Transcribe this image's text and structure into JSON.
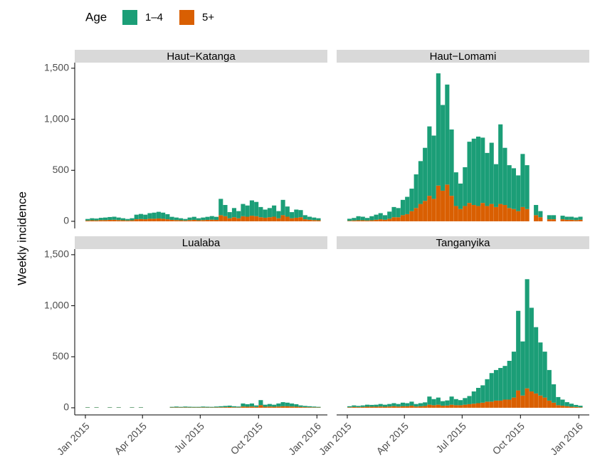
{
  "legend": {
    "title": "Age"
  },
  "y_label": "Weekly incidence",
  "chart_data": [
    {
      "type": "bar",
      "title": "Haut−Katanga",
      "categories": [
        null,
        null,
        null,
        null,
        null,
        null,
        null,
        null,
        null,
        null,
        null,
        null,
        null,
        null,
        null,
        null,
        null,
        null,
        null,
        null,
        null,
        null,
        null,
        null,
        null,
        null,
        null,
        null,
        null,
        null,
        null,
        null,
        null,
        null,
        null,
        null,
        null,
        null,
        null,
        null,
        null,
        null,
        null,
        null,
        null,
        null,
        null,
        null,
        null,
        null,
        null,
        null,
        null
      ],
      "series": [
        {
          "name": "1–4",
          "color": "#1b9e77",
          "values": [
            15,
            20,
            18,
            22,
            25,
            28,
            30,
            25,
            20,
            15,
            20,
            45,
            50,
            45,
            55,
            60,
            65,
            60,
            50,
            30,
            25,
            20,
            15,
            25,
            30,
            20,
            25,
            30,
            35,
            30,
            160,
            110,
            60,
            90,
            70,
            120,
            110,
            150,
            140,
            100,
            80,
            90,
            110,
            70,
            150,
            100,
            60,
            80,
            70,
            40,
            30,
            25,
            20
          ]
        },
        {
          "name": "5+",
          "color": "#d95f02",
          "values": [
            8,
            10,
            9,
            12,
            12,
            14,
            15,
            12,
            10,
            8,
            10,
            20,
            22,
            20,
            25,
            25,
            28,
            25,
            20,
            14,
            12,
            10,
            8,
            12,
            14,
            10,
            12,
            14,
            16,
            14,
            60,
            50,
            30,
            40,
            30,
            50,
            45,
            55,
            50,
            40,
            35,
            40,
            45,
            30,
            60,
            45,
            30,
            35,
            40,
            20,
            15,
            12,
            10
          ]
        }
      ],
      "xlim": [
        -2.4,
        54.5
      ],
      "ylim": [
        -70,
        1555
      ],
      "yticks": [
        0,
        500,
        {
          "value": 1000,
          "label": "1,000"
        },
        {
          "value": 1500,
          "label": "1,500"
        }
      ]
    },
    {
      "type": "bar",
      "title": "Haut−Lomami",
      "categories": [
        null,
        null,
        null,
        null,
        null,
        null,
        null,
        null,
        null,
        null,
        null,
        null,
        null,
        null,
        null,
        null,
        null,
        null,
        null,
        null,
        null,
        null,
        null,
        null,
        null,
        null,
        null,
        null,
        null,
        null,
        null,
        null,
        null,
        null,
        null,
        null,
        null,
        null,
        null,
        null,
        null,
        null,
        null,
        null,
        null,
        null,
        null,
        null,
        null,
        null,
        null,
        null,
        null
      ],
      "series": [
        {
          "name": "1–4",
          "color": "#1b9e77",
          "values": [
            20,
            25,
            40,
            35,
            25,
            40,
            50,
            60,
            45,
            70,
            100,
            90,
            150,
            170,
            220,
            330,
            420,
            520,
            680,
            620,
            1100,
            840,
            980,
            650,
            330,
            250,
            380,
            600,
            650,
            680,
            640,
            520,
            600,
            420,
            780,
            560,
            420,
            400,
            350,
            520,
            430,
            null,
            100,
            60,
            null,
            40,
            40,
            null,
            35,
            30,
            30,
            25,
            30
          ]
        },
        {
          "name": "5+",
          "color": "#d95f02",
          "values": [
            5,
            8,
            10,
            10,
            8,
            10,
            15,
            20,
            15,
            25,
            40,
            40,
            60,
            70,
            100,
            130,
            170,
            200,
            250,
            220,
            350,
            300,
            360,
            250,
            150,
            120,
            150,
            180,
            160,
            150,
            180,
            150,
            170,
            140,
            170,
            160,
            130,
            120,
            100,
            140,
            120,
            null,
            60,
            40,
            null,
            20,
            20,
            null,
            20,
            15,
            15,
            12,
            15
          ]
        }
      ],
      "xlim": [
        -2.4,
        54.5
      ],
      "ylim": [
        -70,
        1555
      ]
    },
    {
      "type": "bar",
      "title": "Lualaba",
      "categories": [
        null,
        null,
        null,
        null,
        null,
        null,
        null,
        null,
        null,
        null,
        null,
        null,
        null,
        null,
        null,
        null,
        null,
        null,
        null,
        null,
        null,
        null,
        null,
        null,
        null,
        null,
        null,
        null,
        null,
        null,
        null,
        null,
        null,
        null,
        null,
        null,
        null,
        null,
        null,
        null,
        null,
        null,
        null,
        null,
        null,
        null,
        null,
        null,
        null,
        null,
        null,
        null,
        null
      ],
      "series": [
        {
          "name": "1–4",
          "color": "#1b9e77",
          "values": [
            4,
            null,
            4,
            null,
            null,
            4,
            null,
            4,
            null,
            null,
            4,
            null,
            4,
            null,
            null,
            null,
            null,
            null,
            null,
            6,
            8,
            6,
            8,
            7,
            6,
            6,
            8,
            7,
            6,
            8,
            10,
            12,
            14,
            10,
            8,
            30,
            25,
            30,
            15,
            50,
            20,
            25,
            20,
            30,
            40,
            35,
            30,
            25,
            15,
            12,
            10,
            8,
            6
          ]
        },
        {
          "name": "5+",
          "color": "#d95f02",
          "values": [
            2,
            null,
            2,
            null,
            null,
            2,
            null,
            2,
            null,
            null,
            2,
            null,
            2,
            null,
            null,
            null,
            null,
            null,
            null,
            3,
            4,
            3,
            4,
            3,
            3,
            3,
            4,
            3,
            3,
            4,
            5,
            6,
            7,
            5,
            4,
            12,
            10,
            12,
            8,
            25,
            10,
            12,
            10,
            12,
            15,
            15,
            12,
            10,
            8,
            6,
            5,
            4,
            3
          ]
        }
      ],
      "xlim": [
        -2.4,
        54.5
      ],
      "ylim": [
        -70,
        1555
      ],
      "yticks": [
        0,
        500,
        {
          "value": 1000,
          "label": "1,000"
        },
        {
          "value": 1500,
          "label": "1,500"
        }
      ],
      "xticks": [
        {
          "value": 0,
          "label": "Jan 2015"
        },
        {
          "value": 12.86,
          "label": "Apr 2015"
        },
        {
          "value": 25.86,
          "label": "Jul 2015"
        },
        {
          "value": 39,
          "label": "Oct 2015"
        },
        {
          "value": 52.14,
          "label": "Jan 2016"
        }
      ]
    },
    {
      "type": "bar",
      "title": "Tanganyika",
      "categories": [
        null,
        null,
        null,
        null,
        null,
        null,
        null,
        null,
        null,
        null,
        null,
        null,
        null,
        null,
        null,
        null,
        null,
        null,
        null,
        null,
        null,
        null,
        null,
        null,
        null,
        null,
        null,
        null,
        null,
        null,
        null,
        null,
        null,
        null,
        null,
        null,
        null,
        null,
        null,
        null,
        null,
        null,
        null,
        null,
        null,
        null,
        null,
        null,
        null,
        null,
        null,
        null,
        null
      ],
      "series": [
        {
          "name": "1–4",
          "color": "#1b9e77",
          "values": [
            10,
            15,
            12,
            15,
            20,
            18,
            20,
            25,
            20,
            25,
            30,
            25,
            35,
            30,
            40,
            25,
            30,
            35,
            80,
            60,
            70,
            45,
            50,
            80,
            60,
            50,
            65,
            80,
            120,
            150,
            170,
            220,
            280,
            300,
            320,
            330,
            380,
            450,
            780,
            530,
            1070,
            820,
            650,
            520,
            450,
            300,
            180,
            80,
            60,
            40,
            30,
            20,
            15
          ]
        },
        {
          "name": "5+",
          "color": "#d95f02",
          "values": [
            5,
            8,
            6,
            8,
            10,
            10,
            10,
            12,
            10,
            12,
            15,
            12,
            15,
            15,
            20,
            12,
            15,
            18,
            30,
            25,
            30,
            20,
            22,
            30,
            25,
            25,
            30,
            35,
            40,
            45,
            50,
            60,
            60,
            70,
            70,
            80,
            80,
            100,
            170,
            120,
            190,
            160,
            140,
            120,
            100,
            70,
            50,
            25,
            20,
            15,
            10,
            8,
            5
          ]
        }
      ],
      "xlim": [
        -2.4,
        54.5
      ],
      "ylim": [
        -70,
        1555
      ],
      "xticks": [
        {
          "value": 0,
          "label": "Jan 2015"
        },
        {
          "value": 12.86,
          "label": "Apr 2015"
        },
        {
          "value": 25.86,
          "label": "Jul 2015"
        },
        {
          "value": 39,
          "label": "Oct 2015"
        },
        {
          "value": 52.14,
          "label": "Jan 2016"
        }
      ]
    }
  ]
}
